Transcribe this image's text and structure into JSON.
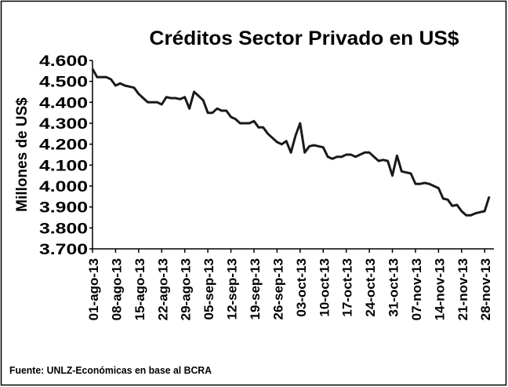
{
  "chart_data": {
    "type": "line",
    "title": "Créditos Sector Privado en US$",
    "y_label": "Millones de US$",
    "source": "Fuente: UNLZ-Económicas en base al BCRA",
    "categories": [
      "01-ago-13",
      null,
      null,
      null,
      null,
      "08-ago-13",
      null,
      null,
      null,
      null,
      "15-ago-13",
      null,
      null,
      null,
      null,
      "22-ago-13",
      null,
      null,
      null,
      null,
      "29-ago-13",
      null,
      null,
      null,
      null,
      "05-sep-13",
      null,
      null,
      null,
      null,
      "12-sep-13",
      null,
      null,
      null,
      null,
      "19-sep-13",
      null,
      null,
      null,
      null,
      "26-sep-13",
      null,
      null,
      null,
      null,
      "03-oct-13",
      null,
      null,
      null,
      null,
      "10-oct-13",
      null,
      null,
      null,
      null,
      "17-oct-13",
      null,
      null,
      null,
      null,
      "24-oct-13",
      null,
      null,
      null,
      null,
      "31-oct-13",
      null,
      null,
      null,
      null,
      "07-nov-13",
      null,
      null,
      null,
      null,
      "14-nov-13",
      null,
      null,
      null,
      null,
      "21-nov-13",
      null,
      null,
      null,
      null,
      "28-nov-13",
      null
    ],
    "series": [
      {
        "color": "#1a1a1a",
        "values": [
          4560,
          4520,
          4520,
          4520,
          4510,
          4480,
          4490,
          4480,
          4475,
          4470,
          4440,
          4420,
          4400,
          4400,
          4400,
          4390,
          4425,
          4420,
          4420,
          4415,
          4425,
          4370,
          4450,
          4430,
          4410,
          4350,
          4350,
          4370,
          4360,
          4360,
          4330,
          4320,
          4300,
          4300,
          4300,
          4310,
          4280,
          4280,
          4250,
          4230,
          4210,
          4200,
          4215,
          4160,
          4240,
          4300,
          4160,
          4190,
          4195,
          4190,
          4185,
          4140,
          4130,
          4140,
          4140,
          4150,
          4150,
          4140,
          4150,
          4160,
          4160,
          4140,
          4120,
          4125,
          4120,
          4050,
          4145,
          4070,
          4065,
          4060,
          4010,
          4010,
          4015,
          4010,
          4000,
          3990,
          3940,
          3935,
          3905,
          3910,
          3880,
          3860,
          3860,
          3870,
          3875,
          3880,
          3950
        ]
      }
    ],
    "ylim": [
      3700,
      4600
    ],
    "yticks": [
      {
        "value": 3700,
        "label": "3.700"
      },
      {
        "value": 3800,
        "label": "3.800"
      },
      {
        "value": 3900,
        "label": "3.900"
      },
      {
        "value": 4000,
        "label": "4.000"
      },
      {
        "value": 4100,
        "label": "4.100"
      },
      {
        "value": 4200,
        "label": "4.200"
      },
      {
        "value": 4300,
        "label": "4.300"
      },
      {
        "value": 4400,
        "label": "4.400"
      },
      {
        "value": 4500,
        "label": "4.500"
      },
      {
        "value": 4600,
        "label": "4.600"
      }
    ],
    "grid": false
  }
}
